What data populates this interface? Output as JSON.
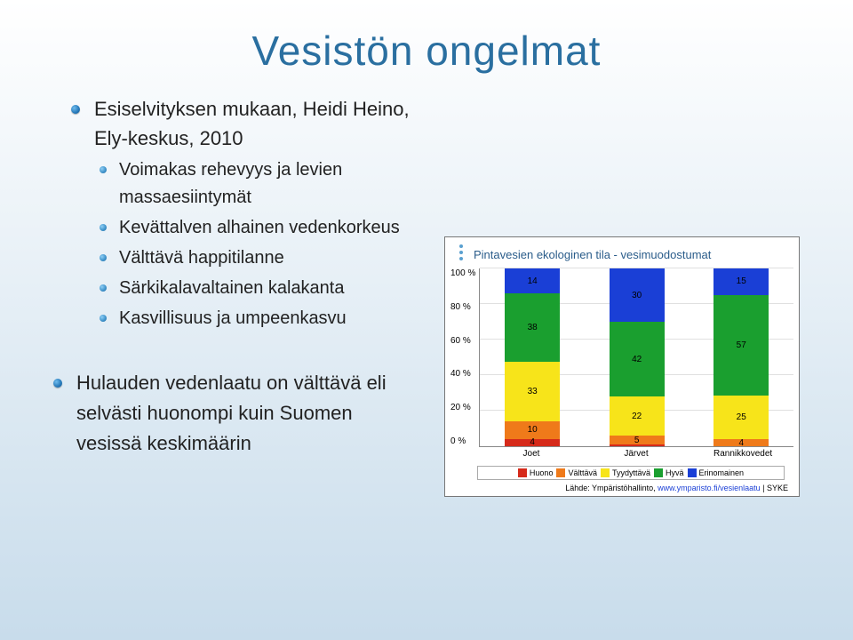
{
  "title": "Vesistön ongelmat",
  "bullets": {
    "main": {
      "top": "Esiselvityksen mukaan, Heidi Heino, Ely-keskus, 2010",
      "sub": [
        "Voimakas rehevyys ja levien massaesiintymät",
        "Kevättalven alhainen vedenkorkeus",
        "Välttävä happitilanne",
        "Särkikalavaltainen kalakanta",
        "Kasvillisuus ja umpeenkasvu"
      ]
    },
    "second": "Hulauden vedenlaatu on välttävä eli selvästi huonompi kuin Suomen vesissä keskimäärin"
  },
  "chart": {
    "title": "Pintavesien ekologinen tila - vesimuodostumat",
    "type": "stacked-bar",
    "categories": [
      "Joet",
      "Järvet",
      "Rannikkovedet"
    ],
    "yticks": [
      "0 %",
      "20 %",
      "40 %",
      "60 %",
      "80 %",
      "100 %"
    ],
    "series_order": [
      "Huono",
      "Välttävä",
      "Tyydyttävä",
      "Hyvä",
      "Erinomainen"
    ],
    "colors": {
      "Huono": "#d62a1a",
      "Välttävä": "#ef7a1a",
      "Tyydyttävä": "#f7e41a",
      "Hyvä": "#1a9f2f",
      "Erinomainen": "#1a3fd6"
    },
    "data": {
      "Joet": {
        "Huono": 4,
        "Välttävä": 10,
        "Tyydyttävä": 33,
        "Hyvä": 38,
        "Erinomainen": 14,
        "hide_label": []
      },
      "Järvet": {
        "Huono": 1,
        "Välttävä": 5,
        "Tyydyttävä": 22,
        "Hyvä": 42,
        "Erinomainen": 30,
        "hide_label": [
          "Huono"
        ]
      },
      "Rannikkovedet": {
        "Huono": 0,
        "Välttävä": 4,
        "Tyydyttävä": 25,
        "Hyvä": 57,
        "Erinomainen": 15,
        "hide_label": [
          "Huono"
        ]
      }
    },
    "legend": [
      "Huono",
      "Välttävä",
      "Tyydyttävä",
      "Hyvä",
      "Erinomainen"
    ],
    "source_prefix": "Lähde: Ympäristöhallinto, ",
    "source_link": "www.ymparisto.fi/vesienlaatu",
    "source_suffix": " | SYKE"
  }
}
